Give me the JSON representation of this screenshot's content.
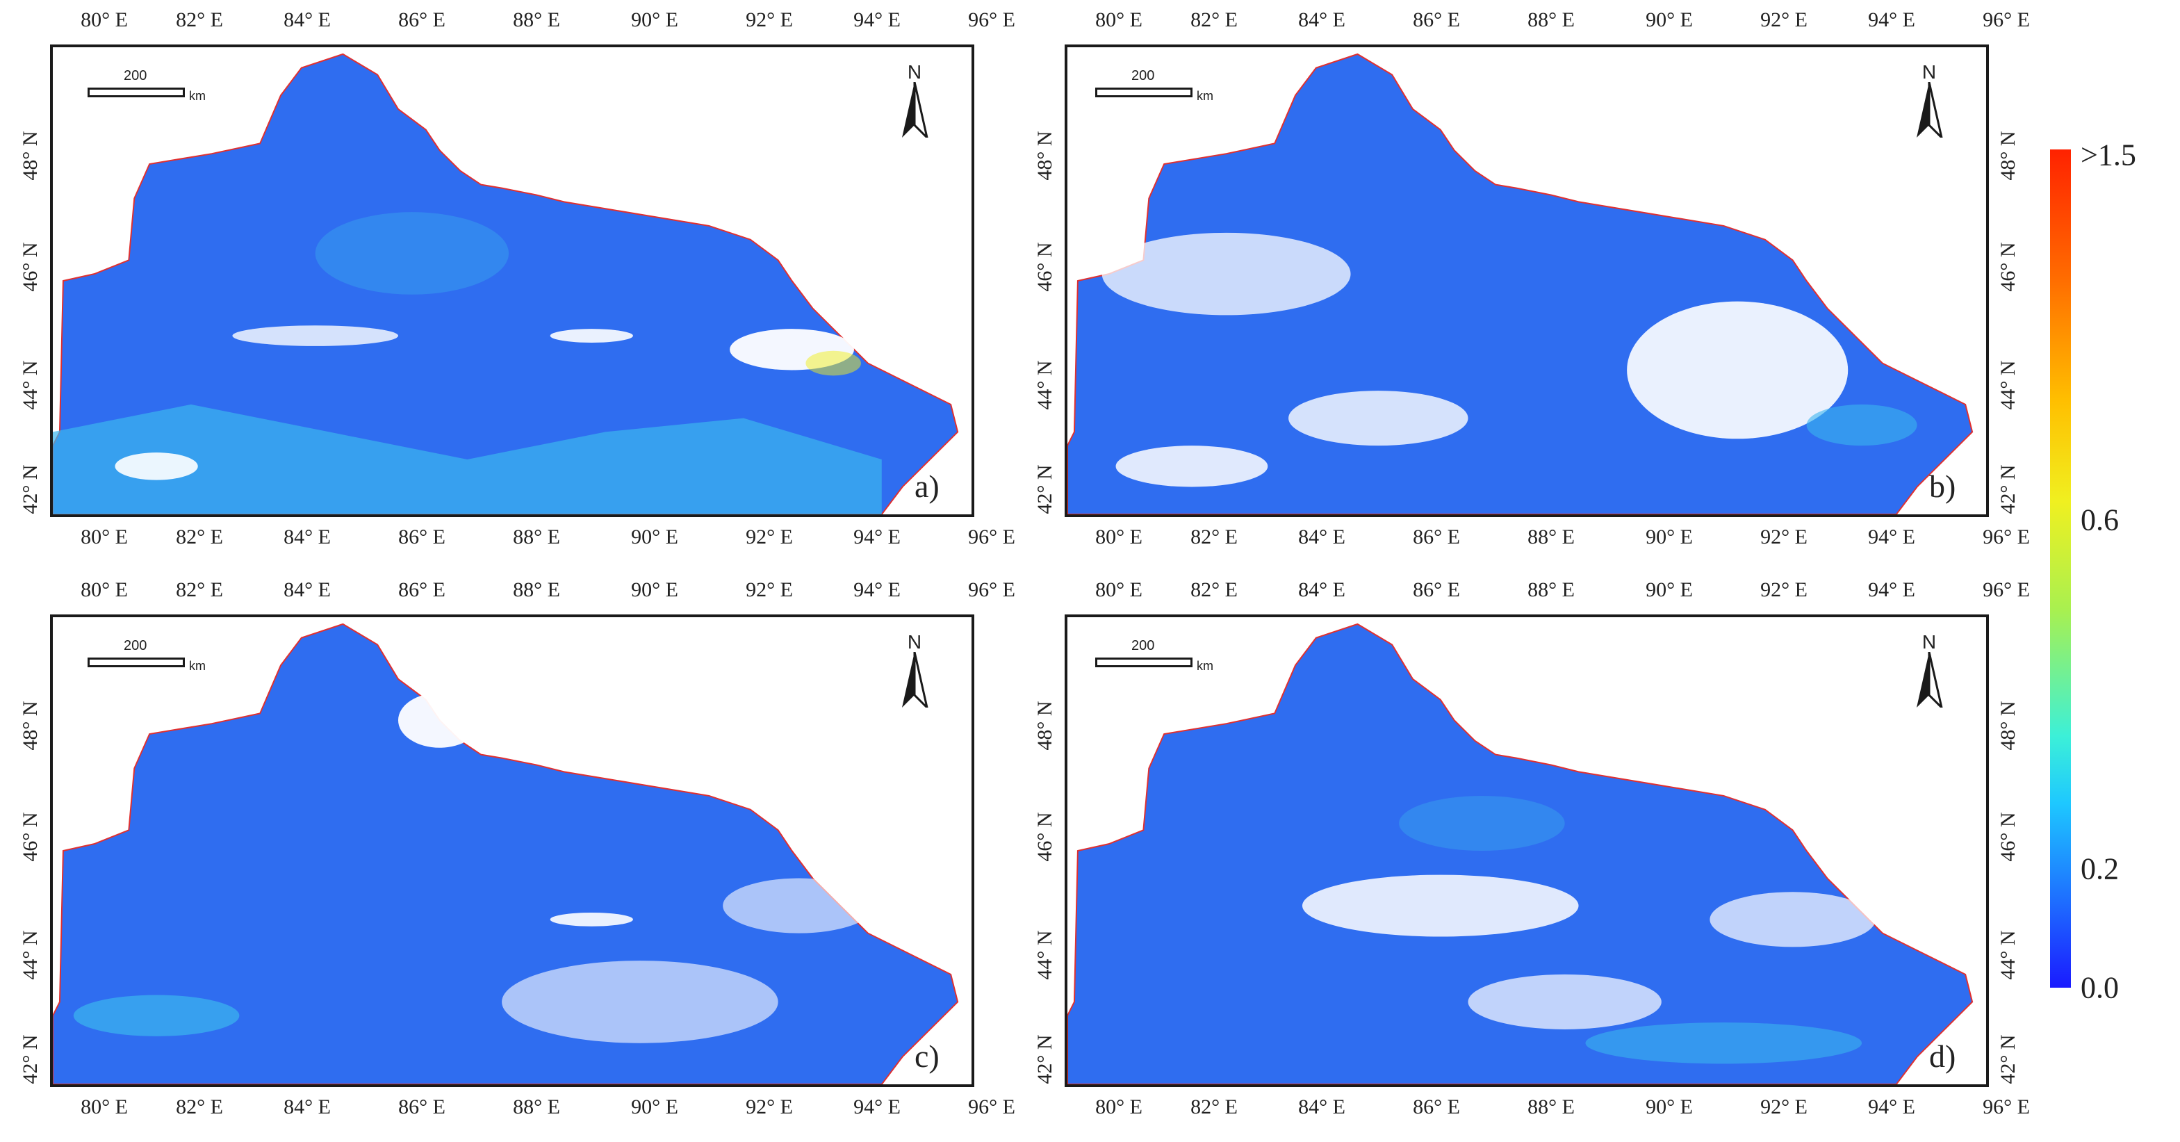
{
  "panels": [
    {
      "label": "a)"
    },
    {
      "label": "b)"
    },
    {
      "label": "c)"
    },
    {
      "label": "d)"
    }
  ],
  "longitude_ticks": [
    "80° E",
    "82° E",
    "84° E",
    "86° E",
    "88° E",
    "90° E",
    "92° E",
    "94° E",
    "96° E"
  ],
  "latitude_ticks": [
    "48° N",
    "46° N",
    "44° N",
    "42° N"
  ],
  "scale_bar": {
    "value": "200",
    "unit": "km"
  },
  "north_arrow": {
    "label": "N"
  },
  "legend": {
    "labels": [
      ">1.5",
      "0.6",
      "0.2",
      "0.0"
    ],
    "colors": {
      "low": "#1a1aff",
      "mid_low": "#1ec8ff",
      "mid": "#f0f020",
      "high": "#ff2200"
    }
  },
  "colors": {
    "region_fill": "#2f6df0",
    "region_light": "#3bb6ee",
    "cloud": "#ffffff",
    "border": "#e03030"
  }
}
